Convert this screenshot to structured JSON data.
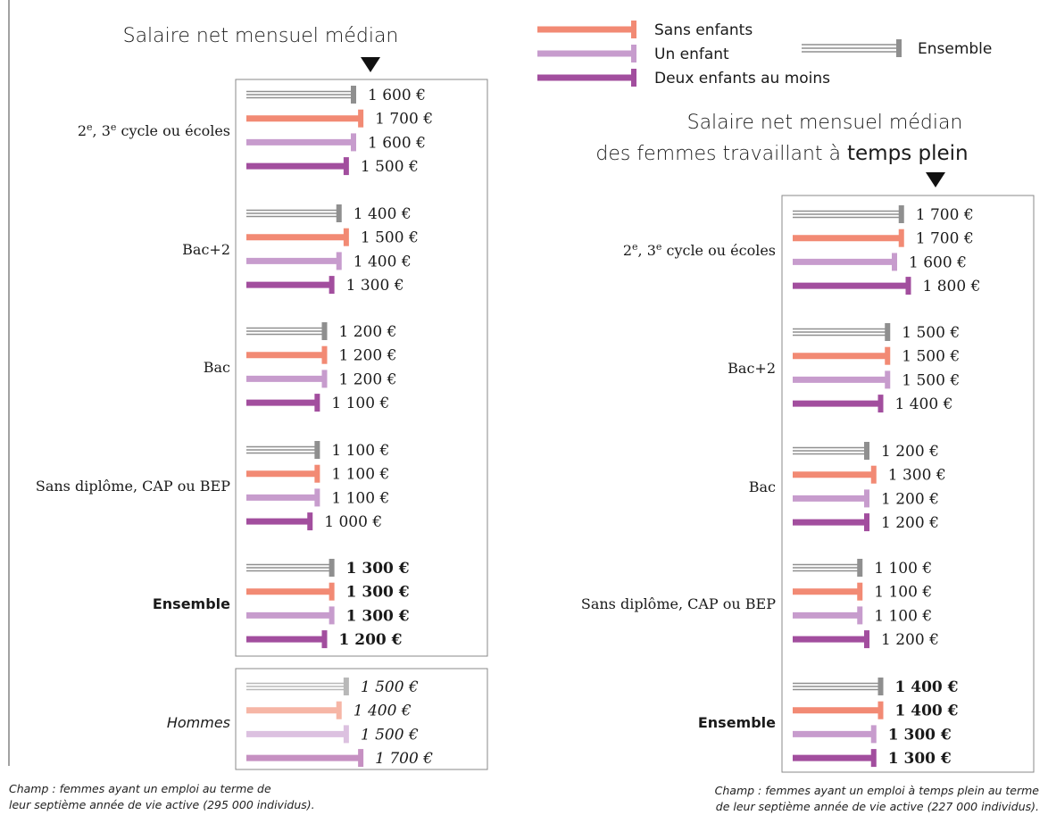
{
  "colors": {
    "sans_enfants": "#f28a74",
    "un_enfant": "#c79ccd",
    "deux_enfants": "#a24e9e",
    "ensemble": "#8f8f8f",
    "hommes_sans_enfants": "#f6b6a6",
    "hommes_un_enfant": "#dcc1e0",
    "hommes_deux_enfants": "#c690c2",
    "hommes_ensemble": "#b8b8b8"
  },
  "legend": {
    "items": [
      {
        "label": "Sans enfants",
        "style": "sans_enfants"
      },
      {
        "label": "Un enfant",
        "style": "un_enfant"
      },
      {
        "label": "Deux enfants au moins",
        "style": "deux_enfants"
      },
      {
        "label": "Ensemble",
        "style": "ensemble"
      }
    ]
  },
  "chart_data": [
    {
      "type": "bar",
      "title": "Salaire net mensuel médian",
      "series_names": [
        "Ensemble",
        "Sans enfants",
        "Un enfant",
        "Deux enfants au moins"
      ],
      "groups": [
        {
          "category": "2e, 3e cycle ou écoles",
          "values": [
            1600,
            1700,
            1600,
            1500
          ],
          "labels": [
            "1 600 €",
            "1 700 €",
            "1 600 €",
            "1 500 €"
          ]
        },
        {
          "category": "Bac+2",
          "values": [
            1400,
            1500,
            1400,
            1300
          ],
          "labels": [
            "1 400 €",
            "1 500 €",
            "1 400 €",
            "1 300 €"
          ]
        },
        {
          "category": "Bac",
          "values": [
            1200,
            1200,
            1200,
            1100
          ],
          "labels": [
            "1 200 €",
            "1 200 €",
            "1 200 €",
            "1 100 €"
          ]
        },
        {
          "category": "Sans diplôme, CAP ou BEP",
          "values": [
            1100,
            1100,
            1100,
            1000
          ],
          "labels": [
            "1 100 €",
            "1 100 €",
            "1 100 €",
            "1 000 €"
          ]
        },
        {
          "category": "Ensemble",
          "values": [
            1300,
            1300,
            1300,
            1200
          ],
          "labels": [
            "1 300 €",
            "1 300 €",
            "1 300 €",
            "1 200 €"
          ],
          "bold": true
        }
      ],
      "extra_group": {
        "category": "Hommes",
        "values": [
          1500,
          1400,
          1500,
          1700
        ],
        "labels": [
          "1 500 €",
          "1 400 €",
          "1 500 €",
          "1 700 €"
        ]
      },
      "note": [
        "Champ : femmes ayant un emploi au terme de",
        "leur septième année de vie active (295 000 individus)."
      ]
    },
    {
      "type": "bar",
      "title_line1": "Salaire net mensuel médian",
      "title_line2_prefix": "des femmes travaillant à ",
      "title_line2_emph": "temps plein",
      "series_names": [
        "Ensemble",
        "Sans enfants",
        "Un enfant",
        "Deux enfants au moins"
      ],
      "groups": [
        {
          "category": "2e, 3e cycle ou écoles",
          "values": [
            1700,
            1700,
            1600,
            1800
          ],
          "labels": [
            "1 700 €",
            "1 700 €",
            "1 600 €",
            "1 800 €"
          ]
        },
        {
          "category": "Bac+2",
          "values": [
            1500,
            1500,
            1500,
            1400
          ],
          "labels": [
            "1 500 €",
            "1 500 €",
            "1 500 €",
            "1 400 €"
          ]
        },
        {
          "category": "Bac",
          "values": [
            1200,
            1300,
            1200,
            1200
          ],
          "labels": [
            "1 200 €",
            "1 300 €",
            "1 200 €",
            "1 200 €"
          ]
        },
        {
          "category": "Sans diplôme, CAP ou BEP",
          "values": [
            1100,
            1100,
            1100,
            1200
          ],
          "labels": [
            "1 100 €",
            "1 100 €",
            "1 100 €",
            "1 200 €"
          ]
        },
        {
          "category": "Ensemble",
          "values": [
            1400,
            1400,
            1300,
            1300
          ],
          "labels": [
            "1 400 €",
            "1 400 €",
            "1 300 €",
            "1 300 €"
          ],
          "bold": true
        }
      ],
      "note": [
        "Champ : femmes ayant un emploi à temps plein au terme",
        "de leur septième année de vie active (227 000 individus)."
      ]
    }
  ]
}
